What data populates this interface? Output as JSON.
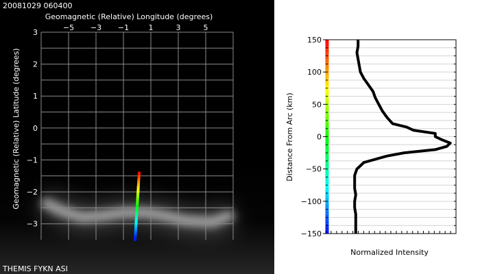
{
  "timestamp": "20081029 060400",
  "footer_label": "THEMIS FYKN ASI",
  "chart_data": [
    {
      "type": "heatmap",
      "subtype": "all-sky-imager-projection",
      "title": "",
      "xlabel": "Geomagnetic (Relative) Longitude (degrees)",
      "ylabel": "Geomagnetic (Relative) Latitude (degrees)",
      "xlim": [
        -7,
        7
      ],
      "ylim": [
        -3.5,
        3
      ],
      "x_ticks": [
        -5,
        -3,
        -1,
        1,
        3,
        5
      ],
      "y_ticks": [
        3,
        2,
        1,
        0,
        -1,
        -2,
        -3
      ],
      "grid": true,
      "background": "#000000",
      "grid_color": "#8c8c8c",
      "meridian_color_scale": "rainbow",
      "meridian_line": {
        "points": [
          {
            "x": 0.15,
            "y": -1.4
          },
          {
            "x": -0.15,
            "y": -3.5
          }
        ]
      },
      "auroral_arc": {
        "color": "#d2d2d2",
        "center_path": [
          {
            "x": -6.9,
            "y": -2.3
          },
          {
            "x": -5.5,
            "y": -2.6
          },
          {
            "x": -4.0,
            "y": -2.8
          },
          {
            "x": -2.5,
            "y": -2.75
          },
          {
            "x": -1.0,
            "y": -2.65
          },
          {
            "x": 0.5,
            "y": -2.65
          },
          {
            "x": 2.0,
            "y": -2.75
          },
          {
            "x": 3.5,
            "y": -2.9
          },
          {
            "x": 5.5,
            "y": -2.95
          },
          {
            "x": 7.0,
            "y": -2.7
          }
        ]
      }
    },
    {
      "type": "line",
      "title": "",
      "xlabel": "Normalized Intensity",
      "ylabel": "Distance From Arc (km)",
      "ylim": [
        -150,
        150
      ],
      "xlim": [
        0,
        1
      ],
      "y_ticks": [
        150,
        100,
        50,
        0,
        -50,
        -100,
        -150
      ],
      "grid": true,
      "color_bar": "rainbow",
      "series": [
        {
          "line_color": "#000000",
          "points": [
            {
              "y": 150,
              "x": 0.15
            },
            {
              "y": 140,
              "x": 0.15
            },
            {
              "y": 130,
              "x": 0.14
            },
            {
              "y": 120,
              "x": 0.15
            },
            {
              "y": 110,
              "x": 0.16
            },
            {
              "y": 100,
              "x": 0.17
            },
            {
              "y": 90,
              "x": 0.2
            },
            {
              "y": 80,
              "x": 0.24
            },
            {
              "y": 70,
              "x": 0.28
            },
            {
              "y": 60,
              "x": 0.3
            },
            {
              "y": 50,
              "x": 0.33
            },
            {
              "y": 40,
              "x": 0.36
            },
            {
              "y": 30,
              "x": 0.4
            },
            {
              "y": 20,
              "x": 0.45
            },
            {
              "y": 15,
              "x": 0.57
            },
            {
              "y": 10,
              "x": 0.63
            },
            {
              "y": 5,
              "x": 0.82
            },
            {
              "y": 0,
              "x": 0.82
            },
            {
              "y": -5,
              "x": 0.88
            },
            {
              "y": -10,
              "x": 0.95
            },
            {
              "y": -15,
              "x": 0.92
            },
            {
              "y": -20,
              "x": 0.82
            },
            {
              "y": -25,
              "x": 0.55
            },
            {
              "y": -30,
              "x": 0.4
            },
            {
              "y": -35,
              "x": 0.3
            },
            {
              "y": -40,
              "x": 0.2
            },
            {
              "y": -45,
              "x": 0.17
            },
            {
              "y": -50,
              "x": 0.14
            },
            {
              "y": -55,
              "x": 0.13
            },
            {
              "y": -60,
              "x": 0.12
            },
            {
              "y": -70,
              "x": 0.12
            },
            {
              "y": -80,
              "x": 0.12
            },
            {
              "y": -90,
              "x": 0.13
            },
            {
              "y": -100,
              "x": 0.12
            },
            {
              "y": -110,
              "x": 0.12
            },
            {
              "y": -120,
              "x": 0.13
            },
            {
              "y": -130,
              "x": 0.13
            },
            {
              "y": -140,
              "x": 0.13
            },
            {
              "y": -150,
              "x": 0.13
            }
          ]
        }
      ]
    }
  ]
}
